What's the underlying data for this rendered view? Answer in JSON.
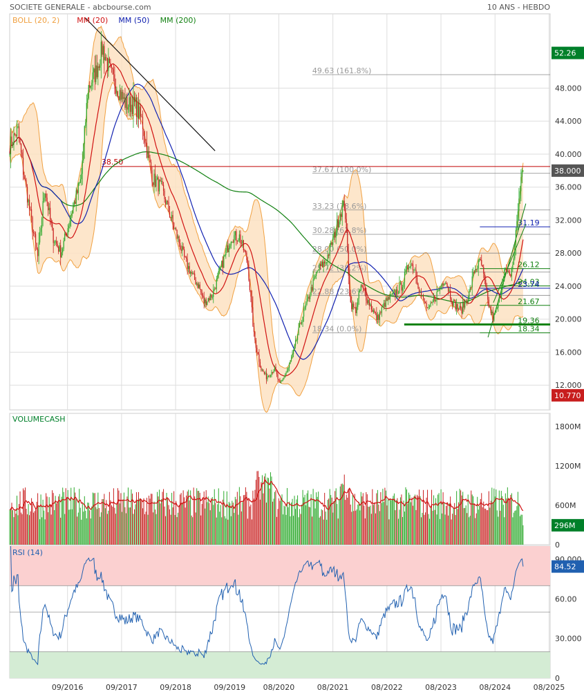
{
  "header": {
    "title": "SOCIETE GENERALE - abcbourse.com",
    "period": "10 ANS - HEBDO"
  },
  "colors": {
    "boll": "#f0a040",
    "boll_fill": "#fde2c2",
    "mm20": "#d01010",
    "mm50": "#1020b0",
    "mm200": "#108010",
    "up": "#2aa82a",
    "down": "#c81e1e",
    "grid": "#dddddd",
    "fib": "#888888",
    "last_price": "#00802a",
    "low_price": "#c81e1e",
    "current_price": "#555555",
    "rsi_line": "#2060b0",
    "rsi_high": "#fbd0d0",
    "rsi_low": "#d4ecd4",
    "volume_label": "#00802a"
  },
  "chart_data": [
    {
      "id": "price",
      "type": "line",
      "title": "",
      "legend": [
        {
          "label": "BOLL (20, 2)",
          "color": "#f0a040"
        },
        {
          "label": "MM (20)",
          "color": "#d01010"
        },
        {
          "label": "MM (50)",
          "color": "#1020b0"
        },
        {
          "label": "MM (200)",
          "color": "#108010"
        }
      ],
      "ylim": [
        9,
        57
      ],
      "y_ticks": [
        "48.000",
        "44.000",
        "40.000",
        "36.000",
        "32.000",
        "28.000",
        "24.000",
        "20.000",
        "16.000",
        "12.000"
      ],
      "y_tick_values": [
        48,
        44,
        40,
        36,
        32,
        28,
        24,
        20,
        16,
        12
      ],
      "x_ticks": [
        "09/2016",
        "09/2017",
        "09/2018",
        "09/2019",
        "08/2020",
        "08/2021",
        "08/2022",
        "08/2023",
        "08/2024",
        "08/2025"
      ],
      "x_tick_values": [
        2016.67,
        2017.67,
        2018.67,
        2019.67,
        2020.58,
        2021.58,
        2022.58,
        2023.58,
        2024.58,
        2025.58
      ],
      "xlim": [
        2015.6,
        2025.6
      ],
      "price_anchors": [
        [
          2015.6,
          41
        ],
        [
          2015.75,
          43
        ],
        [
          2015.85,
          38
        ],
        [
          2016.0,
          32
        ],
        [
          2016.12,
          27.5
        ],
        [
          2016.25,
          36
        ],
        [
          2016.4,
          30
        ],
        [
          2016.55,
          28
        ],
        [
          2016.75,
          33
        ],
        [
          2016.92,
          37
        ],
        [
          2017.05,
          48
        ],
        [
          2017.2,
          50
        ],
        [
          2017.32,
          53
        ],
        [
          2017.45,
          50
        ],
        [
          2017.6,
          48
        ],
        [
          2017.75,
          46
        ],
        [
          2017.92,
          46
        ],
        [
          2018.05,
          44
        ],
        [
          2018.15,
          40
        ],
        [
          2018.25,
          37
        ],
        [
          2018.4,
          36
        ],
        [
          2018.55,
          33
        ],
        [
          2018.7,
          30
        ],
        [
          2018.85,
          27
        ],
        [
          2019.0,
          25
        ],
        [
          2019.1,
          24
        ],
        [
          2019.2,
          22
        ],
        [
          2019.35,
          23
        ],
        [
          2019.5,
          26
        ],
        [
          2019.7,
          30
        ],
        [
          2019.85,
          30
        ],
        [
          2020.0,
          27
        ],
        [
          2020.12,
          18
        ],
        [
          2020.25,
          14
        ],
        [
          2020.35,
          13
        ],
        [
          2020.5,
          14
        ],
        [
          2020.6,
          12
        ],
        [
          2020.75,
          14
        ],
        [
          2020.85,
          16
        ],
        [
          2021.0,
          20
        ],
        [
          2021.15,
          23
        ],
        [
          2021.3,
          26
        ],
        [
          2021.45,
          27
        ],
        [
          2021.6,
          30
        ],
        [
          2021.72,
          33
        ],
        [
          2021.8,
          34
        ],
        [
          2021.9,
          22
        ],
        [
          2022.0,
          21
        ],
        [
          2022.1,
          24
        ],
        [
          2022.25,
          22
        ],
        [
          2022.4,
          20
        ],
        [
          2022.55,
          22
        ],
        [
          2022.7,
          23
        ],
        [
          2022.85,
          24
        ],
        [
          2023.0,
          27
        ],
        [
          2023.1,
          26
        ],
        [
          2023.2,
          23
        ],
        [
          2023.35,
          21
        ],
        [
          2023.5,
          23
        ],
        [
          2023.65,
          25
        ],
        [
          2023.8,
          22
        ],
        [
          2023.95,
          21
        ],
        [
          2024.1,
          23
        ],
        [
          2024.2,
          26
        ],
        [
          2024.32,
          27
        ],
        [
          2024.45,
          22
        ],
        [
          2024.55,
          20
        ],
        [
          2024.65,
          22
        ],
        [
          2024.75,
          26
        ],
        [
          2024.85,
          25
        ],
        [
          2024.92,
          27
        ],
        [
          2025.0,
          33
        ],
        [
          2025.05,
          36.5
        ],
        [
          2025.1,
          38
        ]
      ],
      "fibonacci": [
        {
          "label": "49.63  (161.8%)",
          "value": 49.63
        },
        {
          "label": "37.67  (100.0%)",
          "value": 37.67
        },
        {
          "label": "33.23  (78.6%)",
          "value": 33.23
        },
        {
          "label": "30.28  (61.8%)",
          "value": 30.28
        },
        {
          "label": "28.00  (50.0%)",
          "value": 28.0
        },
        {
          "label": "25.72  (38.2%)",
          "value": 25.72
        },
        {
          "label": "22.88  (23.6%)",
          "value": 22.88
        },
        {
          "label": "18.34  (0.0%)",
          "value": 18.34
        }
      ],
      "levels": [
        {
          "label": "38.50",
          "value": 38.5,
          "color": "#c00000"
        },
        {
          "label": "31.19",
          "value": 31.19,
          "color": "#1020b0"
        },
        {
          "label": "26.12",
          "value": 26.12,
          "color": "#108010"
        },
        {
          "label": "24.03",
          "value": 24.03,
          "color": "#108010"
        },
        {
          "label": "23.74",
          "value": 23.74,
          "color": "#1020b0"
        },
        {
          "label": "21.67",
          "value": 21.67,
          "color": "#108010"
        },
        {
          "label": "19.36",
          "value": 19.36,
          "color": "#108010"
        },
        {
          "label": "18.34",
          "value": 18.34,
          "color": "#108010"
        }
      ],
      "value_tags": [
        {
          "label": "52.26",
          "value": 52.26,
          "color": "#00802a"
        },
        {
          "label": "38.000",
          "value": 38.0,
          "color": "#555555"
        },
        {
          "label": "10.770",
          "value": 10.77,
          "color": "#c81e1e"
        }
      ]
    },
    {
      "id": "volume",
      "type": "bar",
      "title": "VOLUMECASH",
      "ylim": [
        0,
        2000
      ],
      "y_ticks": [
        "1800M",
        "1200M",
        "600M",
        "0"
      ],
      "y_tick_values": [
        1800,
        1200,
        600,
        0
      ],
      "last_value_label": "296M",
      "last_value": 296
    },
    {
      "id": "rsi",
      "type": "line",
      "title": "RSI (14)",
      "ylim": [
        0,
        100
      ],
      "y_ticks": [
        "90.000",
        "60.00",
        "30.000",
        "0"
      ],
      "y_tick_values": [
        90,
        60,
        30,
        0
      ],
      "overbought": 70,
      "oversold": 20,
      "last_value_label": "84.52",
      "last_value": 84.52
    }
  ]
}
